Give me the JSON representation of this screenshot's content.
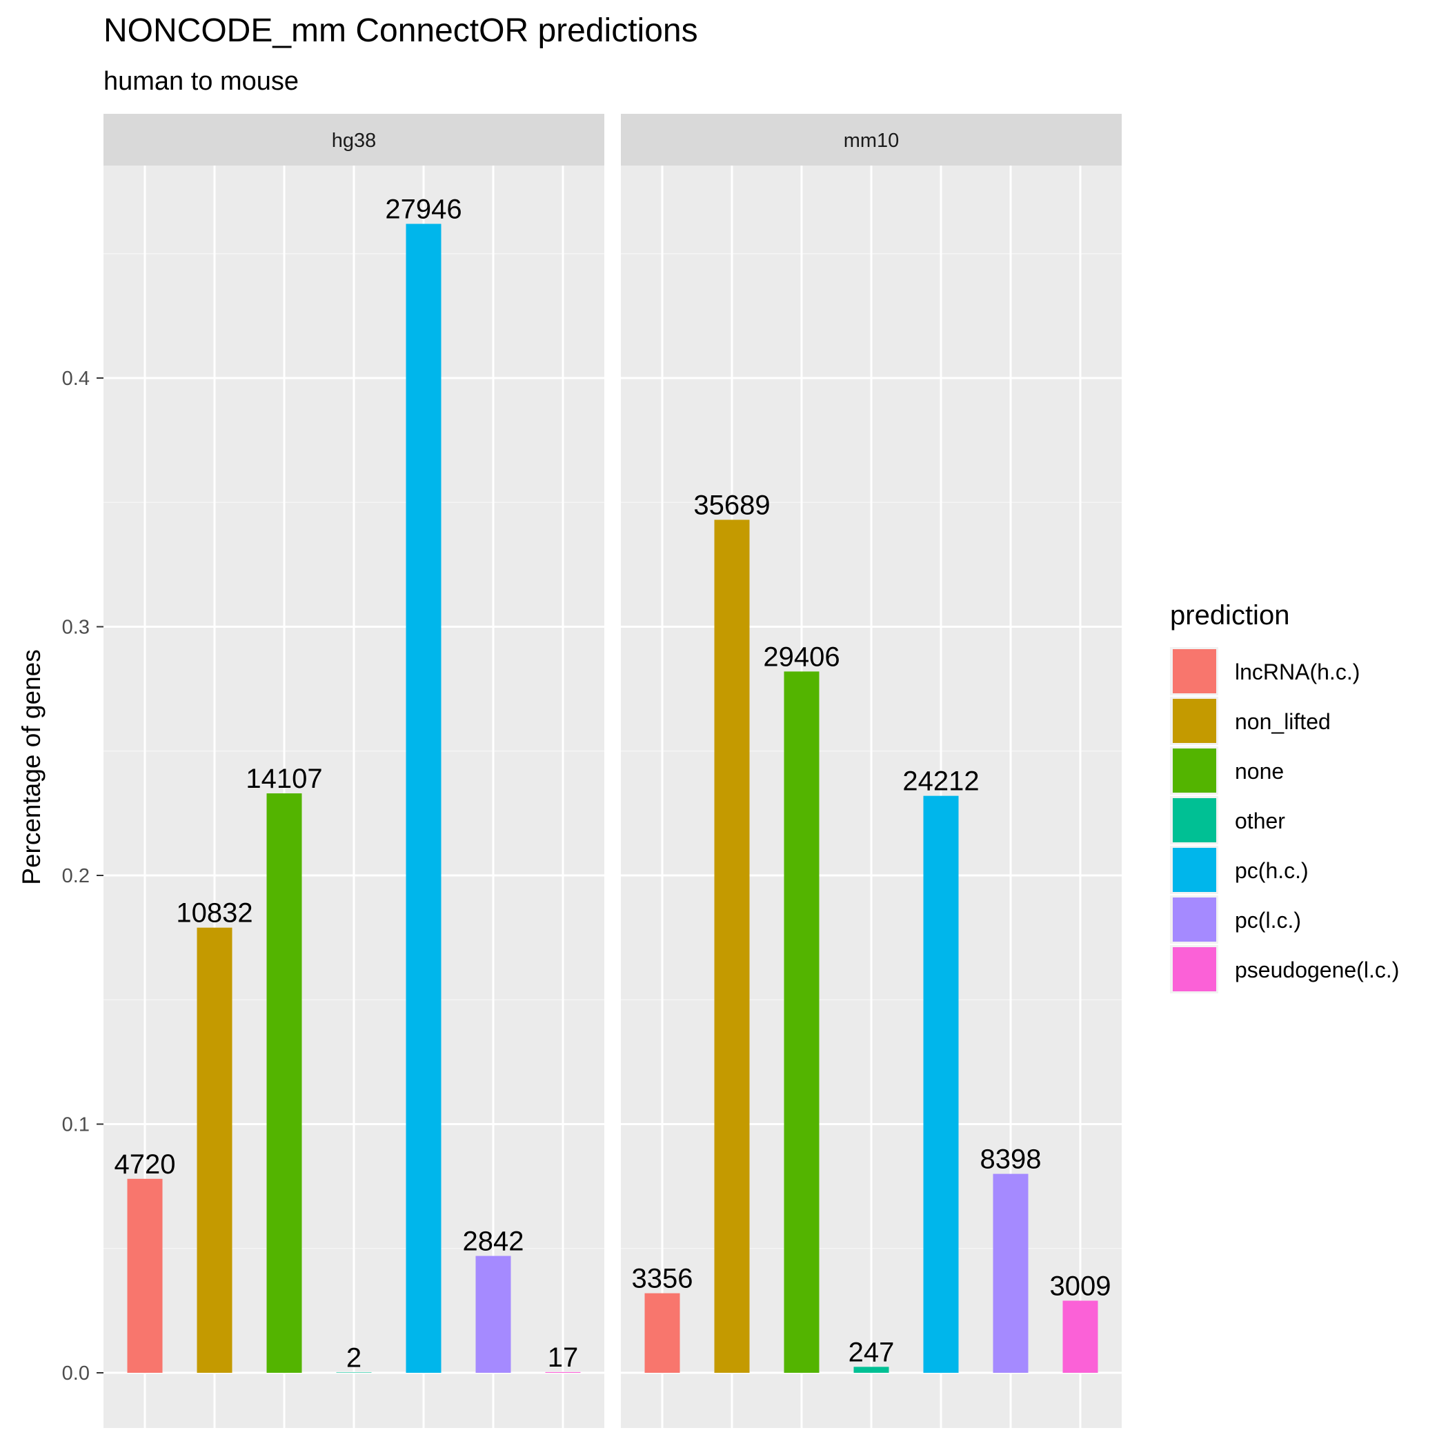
{
  "chart_data": {
    "type": "bar",
    "title": "NONCODE_mm ConnectOR predictions",
    "subtitle": "human to mouse",
    "ylabel": "Percentage of genes",
    "xlabel": "",
    "ylim": [
      -0.022,
      0.487
    ],
    "y_ticks": [
      0.0,
      0.1,
      0.2,
      0.3,
      0.4
    ],
    "y_tick_labels": [
      "0.0",
      "0.1",
      "0.2",
      "0.3",
      "0.4"
    ],
    "grid": true,
    "legend_position": "right",
    "legend_title": "prediction",
    "categories": [
      "lncRNA(h.c.)",
      "non_lifted",
      "none",
      "other",
      "pc(h.c.)",
      "pc(l.c.)",
      "pseudogene(l.c.)"
    ],
    "colors": [
      "#F8766D",
      "#C49A00",
      "#53B400",
      "#00C094",
      "#00B6EB",
      "#A58AFF",
      "#FB61D7"
    ],
    "facets": [
      {
        "name": "hg38",
        "values": [
          0.078,
          0.179,
          0.233,
          3e-05,
          0.462,
          0.047,
          0.0003
        ],
        "labels": [
          "4720",
          "10832",
          "14107",
          "2",
          "27946",
          "2842",
          "17"
        ]
      },
      {
        "name": "mm10",
        "values": [
          0.032,
          0.343,
          0.282,
          0.0024,
          0.232,
          0.08,
          0.029
        ],
        "labels": [
          "3356",
          "35689",
          "29406",
          "247",
          "24212",
          "8398",
          "3009"
        ]
      }
    ]
  }
}
